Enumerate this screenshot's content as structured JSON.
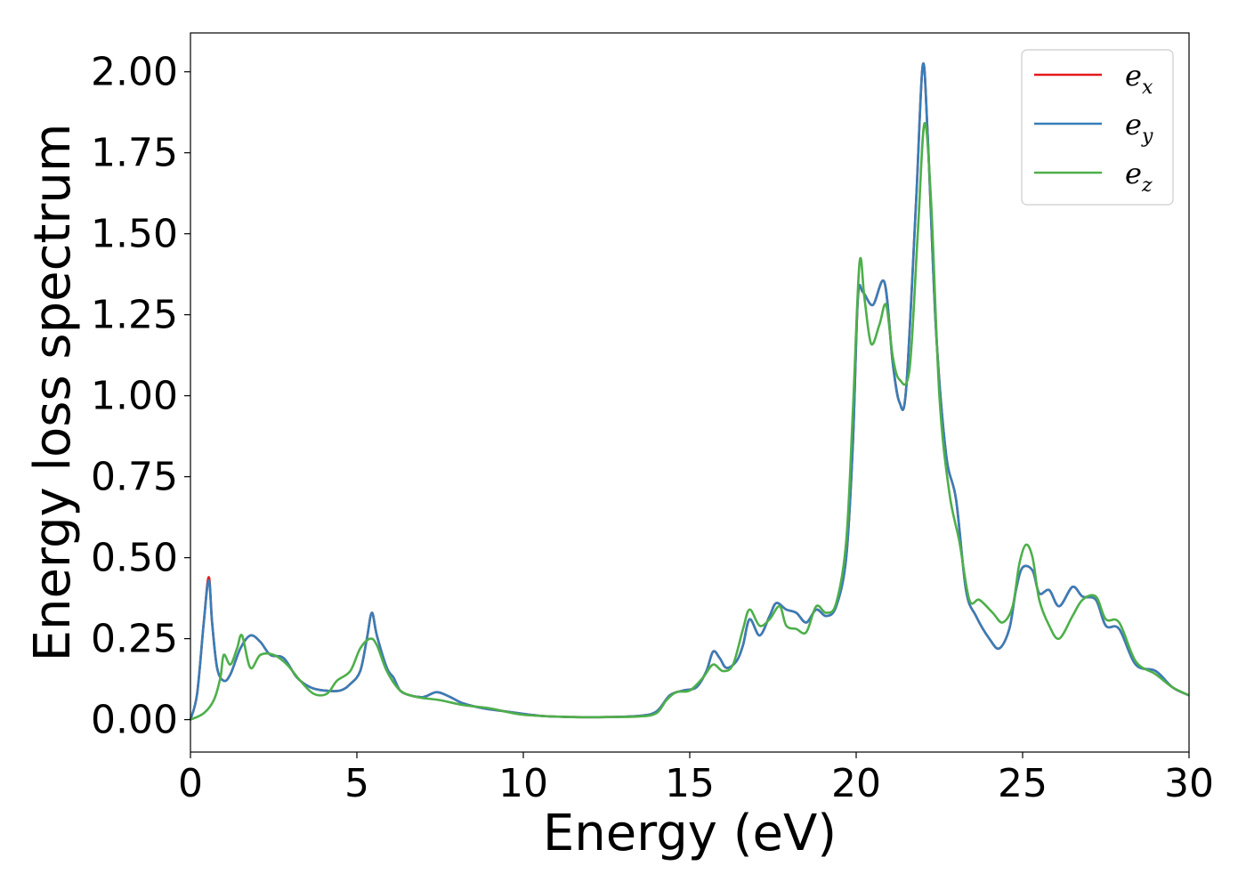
{
  "chart_data": {
    "type": "line",
    "title": "",
    "xlabel": "Energy (eV)",
    "ylabel": "Energy loss spectrum",
    "xlim": [
      0,
      30
    ],
    "ylim": [
      -0.1,
      2.12
    ],
    "xticks": [
      0,
      5,
      10,
      15,
      20,
      25,
      30
    ],
    "xtick_labels": [
      "0",
      "5",
      "10",
      "15",
      "20",
      "25",
      "30"
    ],
    "yticks": [
      0.0,
      0.25,
      0.5,
      0.75,
      1.0,
      1.25,
      1.5,
      1.75,
      2.0
    ],
    "ytick_labels": [
      "0.00",
      "0.25",
      "0.50",
      "0.75",
      "1.00",
      "1.25",
      "1.50",
      "1.75",
      "2.00"
    ],
    "grid": false,
    "legend_position": "top-right",
    "series": [
      {
        "name": "e_x",
        "label_main": "e",
        "label_sub": "x",
        "color": "#e41a1c",
        "points": [
          [
            0,
            0
          ],
          [
            0.2,
            0.08
          ],
          [
            0.4,
            0.3
          ],
          [
            0.55,
            0.44
          ],
          [
            0.65,
            0.3
          ],
          [
            0.8,
            0.16
          ],
          [
            1.0,
            0.12
          ],
          [
            1.2,
            0.14
          ],
          [
            1.5,
            0.22
          ],
          [
            1.8,
            0.26
          ],
          [
            2.1,
            0.24
          ],
          [
            2.4,
            0.2
          ],
          [
            2.8,
            0.19
          ],
          [
            3.2,
            0.13
          ],
          [
            3.6,
            0.1
          ],
          [
            4.0,
            0.09
          ],
          [
            4.5,
            0.09
          ],
          [
            4.8,
            0.11
          ],
          [
            5.1,
            0.15
          ],
          [
            5.3,
            0.25
          ],
          [
            5.45,
            0.33
          ],
          [
            5.6,
            0.26
          ],
          [
            5.9,
            0.16
          ],
          [
            6.1,
            0.13
          ],
          [
            6.3,
            0.09
          ],
          [
            6.6,
            0.075
          ],
          [
            7.0,
            0.07
          ],
          [
            7.4,
            0.085
          ],
          [
            7.8,
            0.07
          ],
          [
            8.2,
            0.05
          ],
          [
            8.8,
            0.035
          ],
          [
            9.5,
            0.025
          ],
          [
            10.5,
            0.012
          ],
          [
            11.5,
            0.008
          ],
          [
            12.5,
            0.008
          ],
          [
            13.5,
            0.012
          ],
          [
            14.0,
            0.025
          ],
          [
            14.4,
            0.075
          ],
          [
            14.8,
            0.09
          ],
          [
            15.2,
            0.1
          ],
          [
            15.5,
            0.15
          ],
          [
            15.7,
            0.21
          ],
          [
            15.9,
            0.19
          ],
          [
            16.1,
            0.16
          ],
          [
            16.4,
            0.18
          ],
          [
            16.6,
            0.23
          ],
          [
            16.8,
            0.31
          ],
          [
            17.1,
            0.26
          ],
          [
            17.4,
            0.32
          ],
          [
            17.6,
            0.36
          ],
          [
            17.9,
            0.34
          ],
          [
            18.2,
            0.33
          ],
          [
            18.5,
            0.3
          ],
          [
            18.8,
            0.34
          ],
          [
            19.1,
            0.32
          ],
          [
            19.4,
            0.35
          ],
          [
            19.7,
            0.5
          ],
          [
            19.9,
            0.85
          ],
          [
            20.05,
            1.3
          ],
          [
            20.2,
            1.32
          ],
          [
            20.5,
            1.28
          ],
          [
            20.85,
            1.35
          ],
          [
            21.1,
            1.1
          ],
          [
            21.3,
            0.98
          ],
          [
            21.5,
            1.02
          ],
          [
            21.8,
            1.6
          ],
          [
            22.0,
            2.02
          ],
          [
            22.15,
            1.8
          ],
          [
            22.4,
            1.2
          ],
          [
            22.7,
            0.82
          ],
          [
            23.0,
            0.68
          ],
          [
            23.3,
            0.4
          ],
          [
            23.6,
            0.32
          ],
          [
            24.0,
            0.25
          ],
          [
            24.3,
            0.22
          ],
          [
            24.6,
            0.28
          ],
          [
            24.8,
            0.4
          ],
          [
            25.0,
            0.47
          ],
          [
            25.3,
            0.46
          ],
          [
            25.5,
            0.39
          ],
          [
            25.8,
            0.4
          ],
          [
            26.1,
            0.35
          ],
          [
            26.5,
            0.41
          ],
          [
            26.8,
            0.38
          ],
          [
            27.2,
            0.37
          ],
          [
            27.5,
            0.29
          ],
          [
            27.9,
            0.28
          ],
          [
            28.4,
            0.17
          ],
          [
            29.0,
            0.15
          ],
          [
            29.5,
            0.1
          ],
          [
            30.0,
            0.075
          ]
        ]
      },
      {
        "name": "e_y",
        "label_main": "e",
        "label_sub": "y",
        "color": "#377eb8",
        "points": [
          [
            0,
            0
          ],
          [
            0.2,
            0.08
          ],
          [
            0.4,
            0.3
          ],
          [
            0.55,
            0.43
          ],
          [
            0.65,
            0.3
          ],
          [
            0.8,
            0.16
          ],
          [
            1.0,
            0.12
          ],
          [
            1.2,
            0.14
          ],
          [
            1.5,
            0.22
          ],
          [
            1.8,
            0.26
          ],
          [
            2.1,
            0.24
          ],
          [
            2.4,
            0.2
          ],
          [
            2.8,
            0.19
          ],
          [
            3.2,
            0.13
          ],
          [
            3.6,
            0.1
          ],
          [
            4.0,
            0.09
          ],
          [
            4.5,
            0.09
          ],
          [
            4.8,
            0.11
          ],
          [
            5.1,
            0.15
          ],
          [
            5.3,
            0.25
          ],
          [
            5.45,
            0.33
          ],
          [
            5.6,
            0.26
          ],
          [
            5.9,
            0.16
          ],
          [
            6.1,
            0.13
          ],
          [
            6.3,
            0.09
          ],
          [
            6.6,
            0.075
          ],
          [
            7.0,
            0.07
          ],
          [
            7.4,
            0.085
          ],
          [
            7.8,
            0.07
          ],
          [
            8.2,
            0.05
          ],
          [
            8.8,
            0.035
          ],
          [
            9.5,
            0.025
          ],
          [
            10.5,
            0.012
          ],
          [
            11.5,
            0.008
          ],
          [
            12.5,
            0.008
          ],
          [
            13.5,
            0.012
          ],
          [
            14.0,
            0.025
          ],
          [
            14.4,
            0.075
          ],
          [
            14.8,
            0.09
          ],
          [
            15.2,
            0.1
          ],
          [
            15.5,
            0.15
          ],
          [
            15.7,
            0.21
          ],
          [
            15.9,
            0.19
          ],
          [
            16.1,
            0.16
          ],
          [
            16.4,
            0.18
          ],
          [
            16.6,
            0.23
          ],
          [
            16.8,
            0.31
          ],
          [
            17.1,
            0.26
          ],
          [
            17.4,
            0.32
          ],
          [
            17.6,
            0.36
          ],
          [
            17.9,
            0.34
          ],
          [
            18.2,
            0.33
          ],
          [
            18.5,
            0.3
          ],
          [
            18.8,
            0.34
          ],
          [
            19.1,
            0.32
          ],
          [
            19.4,
            0.35
          ],
          [
            19.7,
            0.5
          ],
          [
            19.9,
            0.85
          ],
          [
            20.05,
            1.3
          ],
          [
            20.2,
            1.32
          ],
          [
            20.5,
            1.28
          ],
          [
            20.85,
            1.35
          ],
          [
            21.1,
            1.1
          ],
          [
            21.3,
            0.98
          ],
          [
            21.5,
            1.02
          ],
          [
            21.8,
            1.6
          ],
          [
            22.0,
            2.02
          ],
          [
            22.15,
            1.8
          ],
          [
            22.4,
            1.2
          ],
          [
            22.7,
            0.82
          ],
          [
            23.0,
            0.68
          ],
          [
            23.3,
            0.4
          ],
          [
            23.6,
            0.32
          ],
          [
            24.0,
            0.25
          ],
          [
            24.3,
            0.22
          ],
          [
            24.6,
            0.28
          ],
          [
            24.8,
            0.4
          ],
          [
            25.0,
            0.47
          ],
          [
            25.3,
            0.46
          ],
          [
            25.5,
            0.39
          ],
          [
            25.8,
            0.4
          ],
          [
            26.1,
            0.35
          ],
          [
            26.5,
            0.41
          ],
          [
            26.8,
            0.38
          ],
          [
            27.2,
            0.37
          ],
          [
            27.5,
            0.29
          ],
          [
            27.9,
            0.28
          ],
          [
            28.4,
            0.17
          ],
          [
            29.0,
            0.15
          ],
          [
            29.5,
            0.1
          ],
          [
            30.0,
            0.075
          ]
        ]
      },
      {
        "name": "e_z",
        "label_main": "e",
        "label_sub": "z",
        "color": "#4daf4a",
        "points": [
          [
            0,
            0
          ],
          [
            0.4,
            0.02
          ],
          [
            0.7,
            0.06
          ],
          [
            0.9,
            0.13
          ],
          [
            1.0,
            0.2
          ],
          [
            1.2,
            0.17
          ],
          [
            1.4,
            0.22
          ],
          [
            1.55,
            0.26
          ],
          [
            1.8,
            0.16
          ],
          [
            2.1,
            0.2
          ],
          [
            2.5,
            0.2
          ],
          [
            2.9,
            0.17
          ],
          [
            3.3,
            0.12
          ],
          [
            3.7,
            0.08
          ],
          [
            4.1,
            0.08
          ],
          [
            4.4,
            0.12
          ],
          [
            4.8,
            0.15
          ],
          [
            5.1,
            0.22
          ],
          [
            5.4,
            0.25
          ],
          [
            5.6,
            0.23
          ],
          [
            5.9,
            0.15
          ],
          [
            6.3,
            0.09
          ],
          [
            6.8,
            0.07
          ],
          [
            7.5,
            0.06
          ],
          [
            8.2,
            0.045
          ],
          [
            9.0,
            0.035
          ],
          [
            10.0,
            0.015
          ],
          [
            11.5,
            0.008
          ],
          [
            12.5,
            0.008
          ],
          [
            13.5,
            0.01
          ],
          [
            14.0,
            0.02
          ],
          [
            14.3,
            0.06
          ],
          [
            14.6,
            0.085
          ],
          [
            15.0,
            0.09
          ],
          [
            15.4,
            0.13
          ],
          [
            15.7,
            0.17
          ],
          [
            16.0,
            0.15
          ],
          [
            16.3,
            0.17
          ],
          [
            16.6,
            0.28
          ],
          [
            16.8,
            0.34
          ],
          [
            17.1,
            0.29
          ],
          [
            17.4,
            0.31
          ],
          [
            17.7,
            0.35
          ],
          [
            17.9,
            0.29
          ],
          [
            18.2,
            0.28
          ],
          [
            18.5,
            0.27
          ],
          [
            18.8,
            0.35
          ],
          [
            19.1,
            0.33
          ],
          [
            19.4,
            0.36
          ],
          [
            19.7,
            0.55
          ],
          [
            19.9,
            0.95
          ],
          [
            20.1,
            1.41
          ],
          [
            20.25,
            1.3
          ],
          [
            20.45,
            1.16
          ],
          [
            20.7,
            1.22
          ],
          [
            20.9,
            1.28
          ],
          [
            21.1,
            1.12
          ],
          [
            21.3,
            1.05
          ],
          [
            21.6,
            1.08
          ],
          [
            21.85,
            1.5
          ],
          [
            22.05,
            1.84
          ],
          [
            22.25,
            1.6
          ],
          [
            22.5,
            1.0
          ],
          [
            22.8,
            0.7
          ],
          [
            23.1,
            0.55
          ],
          [
            23.4,
            0.37
          ],
          [
            23.7,
            0.37
          ],
          [
            24.1,
            0.33
          ],
          [
            24.4,
            0.3
          ],
          [
            24.7,
            0.35
          ],
          [
            24.9,
            0.48
          ],
          [
            25.1,
            0.54
          ],
          [
            25.3,
            0.5
          ],
          [
            25.5,
            0.37
          ],
          [
            25.8,
            0.29
          ],
          [
            26.1,
            0.25
          ],
          [
            26.5,
            0.32
          ],
          [
            26.8,
            0.37
          ],
          [
            27.2,
            0.38
          ],
          [
            27.5,
            0.31
          ],
          [
            27.9,
            0.3
          ],
          [
            28.4,
            0.18
          ],
          [
            29.0,
            0.14
          ],
          [
            29.5,
            0.1
          ],
          [
            30.0,
            0.075
          ]
        ]
      }
    ]
  }
}
